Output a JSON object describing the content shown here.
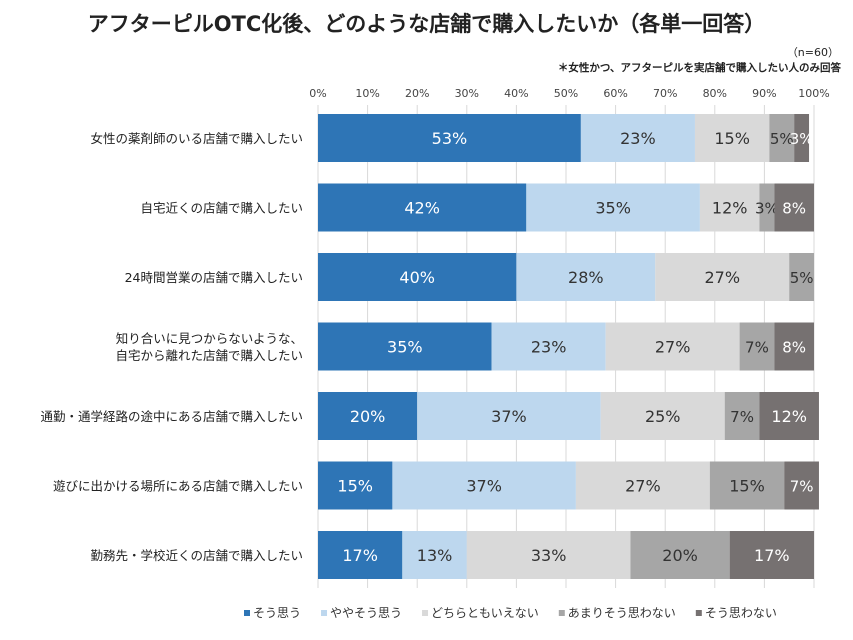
{
  "title": "アフターピルOTC化後、どのような店舗で購入したいか（各単一回答）",
  "n_label": "（n=60）",
  "note": "＊女性かつ、アフターピルを実店舗で購入したい人のみ回答",
  "chart_data": {
    "type": "bar",
    "orientation": "horizontal",
    "stacked": true,
    "xlim": [
      0,
      100
    ],
    "xticks": [
      "0%",
      "10%",
      "20%",
      "30%",
      "40%",
      "50%",
      "60%",
      "70%",
      "80%",
      "90%",
      "100%"
    ],
    "grid": true,
    "legend_position": "bottom",
    "categories": [
      "女性の薬剤師のいる店舗で購入したい",
      "自宅近くの店舗で購入したい",
      "24時間営業の店舗で購入したい",
      "知り合いに見つからないような、\n自宅から離れた店舗で購入したい",
      "通勤・通学経路の途中にある店舗で購入したい",
      "遊びに出かける場所にある店舗で購入したい",
      "勤務先・学校近くの店舗で購入したい"
    ],
    "series": [
      {
        "name": "そう思う",
        "color": "#2e75b6",
        "values": [
          53,
          42,
          40,
          35,
          20,
          15,
          17
        ]
      },
      {
        "name": "ややそう思う",
        "color": "#bdd7ee",
        "values": [
          23,
          35,
          28,
          23,
          37,
          37,
          13
        ]
      },
      {
        "name": "どちらともいえない",
        "color": "#d9d9d9",
        "values": [
          15,
          12,
          27,
          27,
          25,
          27,
          33
        ]
      },
      {
        "name": "あまりそう思わない",
        "color": "#a6a6a6",
        "values": [
          5,
          3,
          5,
          7,
          7,
          15,
          20
        ]
      },
      {
        "name": "そう思わない",
        "color": "#767171",
        "values": [
          3,
          8,
          0,
          8,
          12,
          7,
          17
        ]
      }
    ]
  }
}
